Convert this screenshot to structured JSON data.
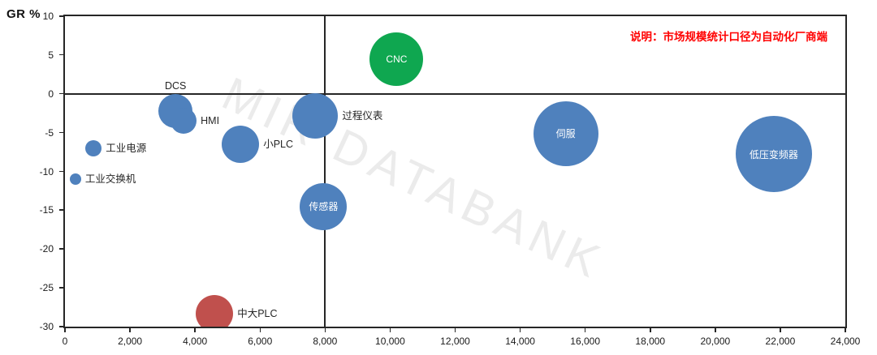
{
  "colors": {
    "blue": "#4F81BD",
    "red": "#C0504D",
    "green": "#0FA750",
    "axis": "#262626",
    "note_red": "#FF0000",
    "watermark_gray": "#EBEBEB"
  },
  "chart_data": {
    "type": "scatter",
    "subtype": "bubble",
    "title": "",
    "ylabel": "GR %",
    "xlabel": "",
    "note": "说明：市场规模统计口径为自动化厂商端",
    "watermark": "MIR DATABANK",
    "xlim": [
      0,
      24000
    ],
    "ylim": [
      -30,
      10
    ],
    "grid": false,
    "reference_line_x": 8000,
    "reference_line_y": 0,
    "x_tick_values": [
      0,
      2000,
      4000,
      6000,
      8000,
      10000,
      12000,
      14000,
      16000,
      18000,
      20000,
      22000,
      24000
    ],
    "x_tick_labels": [
      "0",
      "2,000",
      "4,000",
      "6,000",
      "8,000",
      "10,000",
      "12,000",
      "14,000",
      "16,000",
      "18,000",
      "20,000",
      "22,000",
      "24,000"
    ],
    "y_tick_values": [
      10,
      5,
      0,
      -5,
      -10,
      -15,
      -20,
      -25,
      -30
    ],
    "y_tick_labels": [
      "10",
      "5",
      "0",
      "-5",
      "-10",
      "-15",
      "-20",
      "-25",
      "-30"
    ],
    "series": [
      {
        "id": "cnc",
        "label": "CNC",
        "x": 10200,
        "y": 4.5,
        "radius_px": 33,
        "color_key": "green",
        "label_position": "inside"
      },
      {
        "id": "dcs",
        "label": "DCS",
        "x": 3400,
        "y": -2.2,
        "radius_px": 21,
        "color_key": "blue",
        "label_position": "above"
      },
      {
        "id": "hmi",
        "label": "HMI",
        "x": 3650,
        "y": -3.5,
        "radius_px": 16,
        "color_key": "blue",
        "label_position": "right"
      },
      {
        "id": "industrial-power",
        "label": "工业电源",
        "x": 880,
        "y": -7.0,
        "radius_px": 10,
        "color_key": "blue",
        "label_position": "right"
      },
      {
        "id": "industrial-switch",
        "label": "工业交换机",
        "x": 320,
        "y": -11.0,
        "radius_px": 7,
        "color_key": "blue",
        "label_position": "right"
      },
      {
        "id": "small-plc",
        "label": "小PLC",
        "x": 5400,
        "y": -6.5,
        "radius_px": 23,
        "color_key": "blue",
        "label_position": "right"
      },
      {
        "id": "process-instrument",
        "label": "过程仪表",
        "x": 7700,
        "y": -2.8,
        "radius_px": 28,
        "color_key": "blue",
        "label_position": "right"
      },
      {
        "id": "sensor",
        "label": "传感器",
        "x": 7950,
        "y": -14.5,
        "radius_px": 29,
        "color_key": "blue",
        "label_position": "inside"
      },
      {
        "id": "medium-large-plc",
        "label": "中大PLC",
        "x": 4600,
        "y": -28.3,
        "radius_px": 23,
        "color_key": "red",
        "label_position": "right"
      },
      {
        "id": "servo",
        "label": "伺服",
        "x": 15400,
        "y": -5.1,
        "radius_px": 40,
        "color_key": "blue",
        "label_position": "inside"
      },
      {
        "id": "lv-inverter",
        "label": "低压变频器",
        "x": 21800,
        "y": -7.8,
        "radius_px": 47,
        "color_key": "blue",
        "label_position": "inside"
      }
    ]
  }
}
